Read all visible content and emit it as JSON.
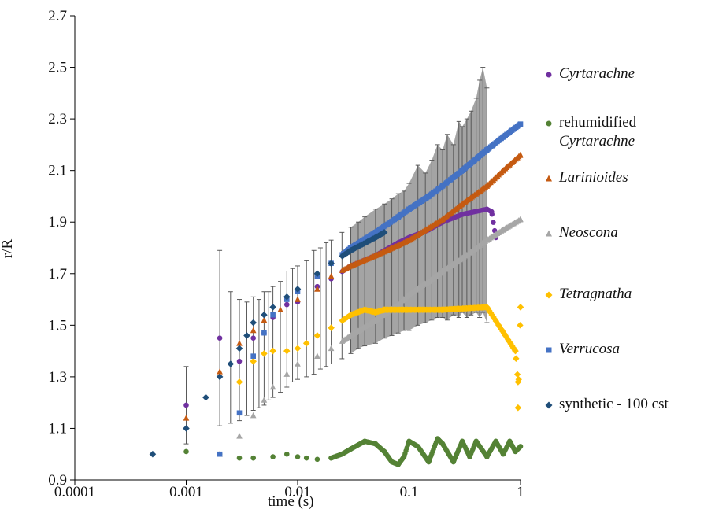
{
  "chart_data": {
    "type": "scatter",
    "xlabel": "time (s)",
    "ylabel": "r/R",
    "xscale": "log",
    "xlim": [
      0.0001,
      1
    ],
    "ylim": [
      0.9,
      2.7
    ],
    "x_ticks": [
      "0.0001",
      "0.001",
      "0.01",
      "0.1",
      "1"
    ],
    "y_ticks": [
      "0.9",
      "1.1",
      "1.3",
      "1.5",
      "1.7",
      "1.9",
      "2.1",
      "2.3",
      "2.5",
      "2.7"
    ],
    "grid": false,
    "legend_position": "right",
    "error_bar_color": "#595959",
    "series": [
      {
        "name": "Cyrtarachne",
        "name_style": "italic",
        "color": "#7030a0",
        "marker": "circle",
        "points": [
          [
            0.001,
            1.19
          ],
          [
            0.002,
            1.45
          ],
          [
            0.003,
            1.36
          ],
          [
            0.004,
            1.45
          ],
          [
            0.005,
            1.47
          ],
          [
            0.006,
            1.53
          ],
          [
            0.008,
            1.58
          ],
          [
            0.01,
            1.59
          ],
          [
            0.015,
            1.65
          ],
          [
            0.02,
            1.68
          ],
          [
            0.03,
            1.73
          ],
          [
            0.05,
            1.77
          ],
          [
            0.08,
            1.82
          ],
          [
            0.1,
            1.84
          ],
          [
            0.15,
            1.87
          ],
          [
            0.2,
            1.9
          ],
          [
            0.3,
            1.93
          ],
          [
            0.5,
            1.95
          ],
          [
            0.55,
            1.94
          ],
          [
            0.6,
            1.84
          ]
        ]
      },
      {
        "name": "rehumidified",
        "name_line2": "Cyrtarachne",
        "color": "#548235",
        "marker": "circle",
        "points": [
          [
            0.001,
            1.01
          ],
          [
            0.002,
            1.0
          ],
          [
            0.003,
            0.985
          ],
          [
            0.004,
            0.985
          ],
          [
            0.006,
            0.99
          ],
          [
            0.008,
            1.0
          ],
          [
            0.01,
            0.99
          ],
          [
            0.012,
            0.985
          ],
          [
            0.015,
            0.98
          ],
          [
            0.02,
            0.985
          ],
          [
            0.025,
            1.0
          ],
          [
            0.03,
            1.02
          ],
          [
            0.04,
            1.05
          ],
          [
            0.05,
            1.04
          ],
          [
            0.06,
            1.01
          ],
          [
            0.07,
            0.97
          ],
          [
            0.08,
            0.96
          ],
          [
            0.09,
            0.99
          ],
          [
            0.1,
            1.05
          ],
          [
            0.12,
            1.03
          ],
          [
            0.15,
            0.97
          ],
          [
            0.18,
            1.06
          ],
          [
            0.2,
            1.04
          ],
          [
            0.25,
            0.97
          ],
          [
            0.3,
            1.05
          ],
          [
            0.35,
            0.99
          ],
          [
            0.4,
            1.05
          ],
          [
            0.5,
            0.99
          ],
          [
            0.6,
            1.05
          ],
          [
            0.7,
            1.0
          ],
          [
            0.8,
            1.05
          ],
          [
            0.9,
            1.01
          ],
          [
            1.0,
            1.03
          ]
        ]
      },
      {
        "name": "Larinioides",
        "name_style": "italic",
        "color": "#c55a11",
        "marker": "triangle",
        "points": [
          [
            0.001,
            1.14
          ],
          [
            0.002,
            1.32
          ],
          [
            0.003,
            1.43
          ],
          [
            0.004,
            1.48
          ],
          [
            0.005,
            1.52
          ],
          [
            0.007,
            1.56
          ],
          [
            0.01,
            1.6
          ],
          [
            0.015,
            1.64
          ],
          [
            0.02,
            1.69
          ],
          [
            0.03,
            1.73
          ],
          [
            0.05,
            1.77
          ],
          [
            0.08,
            1.81
          ],
          [
            0.1,
            1.83
          ],
          [
            0.2,
            1.91
          ],
          [
            0.3,
            1.97
          ],
          [
            0.5,
            2.04
          ],
          [
            0.7,
            2.1
          ],
          [
            1.0,
            2.16
          ]
        ]
      },
      {
        "name": "Neoscona",
        "name_style": "italic",
        "color": "#a6a6a6",
        "marker": "triangle",
        "points": [
          [
            0.002,
            1.0
          ],
          [
            0.003,
            1.07
          ],
          [
            0.004,
            1.15
          ],
          [
            0.005,
            1.21
          ],
          [
            0.006,
            1.26
          ],
          [
            0.008,
            1.31
          ],
          [
            0.01,
            1.35
          ],
          [
            0.015,
            1.38
          ],
          [
            0.02,
            1.41
          ],
          [
            0.03,
            1.46
          ],
          [
            0.05,
            1.52
          ],
          [
            0.08,
            1.58
          ],
          [
            0.1,
            1.62
          ],
          [
            0.15,
            1.67
          ],
          [
            0.2,
            1.71
          ],
          [
            0.3,
            1.76
          ],
          [
            0.5,
            1.83
          ],
          [
            0.7,
            1.87
          ],
          [
            1.0,
            1.91
          ]
        ]
      },
      {
        "name": "Tetragnatha",
        "name_style": "italic",
        "color": "#ffc000",
        "marker": "diamond",
        "points": [
          [
            0.003,
            1.28
          ],
          [
            0.004,
            1.36
          ],
          [
            0.005,
            1.39
          ],
          [
            0.006,
            1.4
          ],
          [
            0.008,
            1.4
          ],
          [
            0.01,
            1.41
          ],
          [
            0.012,
            1.43
          ],
          [
            0.015,
            1.46
          ],
          [
            0.02,
            1.49
          ],
          [
            0.03,
            1.54
          ],
          [
            0.04,
            1.56
          ],
          [
            0.05,
            1.55
          ],
          [
            0.06,
            1.56
          ],
          [
            0.08,
            1.56
          ],
          [
            0.1,
            1.56
          ],
          [
            0.2,
            1.56
          ],
          [
            0.5,
            1.57
          ],
          [
            0.9,
            1.4
          ],
          [
            0.95,
            1.28
          ],
          [
            0.95,
            1.18
          ],
          [
            1.0,
            1.57
          ]
        ]
      },
      {
        "name": "Verrucosa",
        "name_style": "italic",
        "color": "#4472c4",
        "marker": "square",
        "points": [
          [
            0.002,
            1.0
          ],
          [
            0.003,
            1.16
          ],
          [
            0.004,
            1.38
          ],
          [
            0.005,
            1.47
          ],
          [
            0.006,
            1.54
          ],
          [
            0.008,
            1.6
          ],
          [
            0.01,
            1.63
          ],
          [
            0.015,
            1.69
          ],
          [
            0.02,
            1.74
          ],
          [
            0.03,
            1.8
          ],
          [
            0.05,
            1.86
          ],
          [
            0.08,
            1.92
          ],
          [
            0.1,
            1.95
          ],
          [
            0.15,
            2.0
          ],
          [
            0.2,
            2.04
          ],
          [
            0.3,
            2.1
          ],
          [
            0.5,
            2.18
          ],
          [
            0.7,
            2.23
          ],
          [
            1.0,
            2.28
          ]
        ]
      },
      {
        "name": "synthetic - 100 cst",
        "color": "#1f4e79",
        "marker": "diamond",
        "points": [
          [
            0.0005,
            1.0
          ],
          [
            0.001,
            1.1
          ],
          [
            0.0015,
            1.22
          ],
          [
            0.002,
            1.3
          ],
          [
            0.0025,
            1.35
          ],
          [
            0.003,
            1.41
          ],
          [
            0.0035,
            1.46
          ],
          [
            0.004,
            1.51
          ],
          [
            0.005,
            1.54
          ],
          [
            0.006,
            1.57
          ],
          [
            0.008,
            1.61
          ],
          [
            0.01,
            1.64
          ],
          [
            0.015,
            1.7
          ],
          [
            0.02,
            1.74
          ],
          [
            0.03,
            1.79
          ],
          [
            0.05,
            1.84
          ],
          [
            0.06,
            1.86
          ]
        ]
      }
    ],
    "error_bars": [
      [
        0.001,
        1.04,
        1.34
      ],
      [
        0.002,
        1.11,
        1.79
      ],
      [
        0.0025,
        1.12,
        1.63
      ],
      [
        0.003,
        1.13,
        1.6
      ],
      [
        0.0035,
        1.15,
        1.59
      ],
      [
        0.004,
        1.17,
        1.61
      ],
      [
        0.0045,
        1.18,
        1.6
      ],
      [
        0.005,
        1.19,
        1.63
      ],
      [
        0.0055,
        1.21,
        1.63
      ],
      [
        0.006,
        1.22,
        1.65
      ],
      [
        0.007,
        1.24,
        1.67
      ],
      [
        0.008,
        1.26,
        1.71
      ],
      [
        0.009,
        1.28,
        1.72
      ],
      [
        0.01,
        1.29,
        1.73
      ],
      [
        0.012,
        1.3,
        1.75
      ],
      [
        0.014,
        1.31,
        1.79
      ],
      [
        0.016,
        1.33,
        1.8
      ],
      [
        0.018,
        1.34,
        1.82
      ],
      [
        0.02,
        1.35,
        1.83
      ],
      [
        0.025,
        1.37,
        1.86
      ],
      [
        0.03,
        1.39,
        1.88
      ],
      [
        0.035,
        1.41,
        1.9
      ],
      [
        0.04,
        1.42,
        1.92
      ],
      [
        0.05,
        1.43,
        1.95
      ],
      [
        0.06,
        1.45,
        1.97
      ],
      [
        0.07,
        1.46,
        1.99
      ],
      [
        0.08,
        1.47,
        2.01
      ],
      [
        0.09,
        1.48,
        2.02
      ],
      [
        0.1,
        1.48,
        2.05
      ],
      [
        0.12,
        1.5,
        2.12
      ],
      [
        0.14,
        1.51,
        2.09
      ],
      [
        0.16,
        1.52,
        2.14
      ],
      [
        0.18,
        1.53,
        2.2
      ],
      [
        0.2,
        1.53,
        2.18
      ],
      [
        0.22,
        1.52,
        2.24
      ],
      [
        0.25,
        1.54,
        2.2
      ],
      [
        0.28,
        1.53,
        2.29
      ],
      [
        0.3,
        1.55,
        2.27
      ],
      [
        0.33,
        1.53,
        2.3
      ],
      [
        0.36,
        1.54,
        2.33
      ],
      [
        0.4,
        1.55,
        2.38
      ],
      [
        0.43,
        1.53,
        2.45
      ],
      [
        0.46,
        1.55,
        2.5
      ],
      [
        0.5,
        1.51,
        2.42
      ]
    ]
  }
}
